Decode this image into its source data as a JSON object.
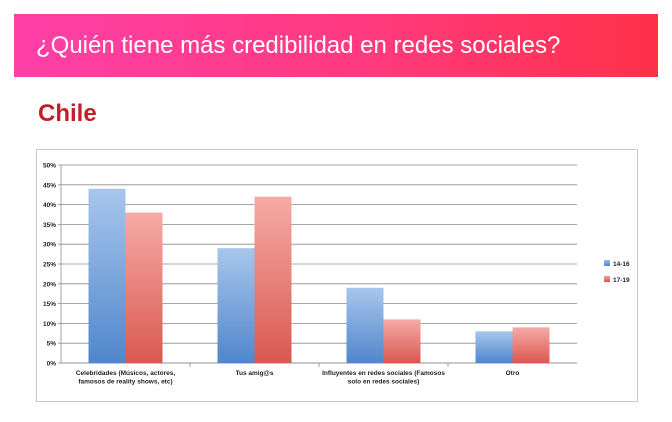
{
  "header": {
    "title": "¿Quién tiene más credibilidad en redes sociales?",
    "country": "Chile"
  },
  "colors": {
    "banner_start": "#ff3fa8",
    "banner_end": "#ff3049",
    "country_text": "#c0202a",
    "series_14_16": "#6f9fd8",
    "series_17_19": "#e8706a"
  },
  "chart_data": {
    "type": "bar",
    "categories": [
      [
        "Celebridades (Músicos, actores,",
        "famosos de reality shows, etc)"
      ],
      [
        "Tus amig@s"
      ],
      [
        "Influyentes en redes sociales (Famosos",
        "solo en redes sociales)"
      ],
      [
        "Otro"
      ]
    ],
    "series": [
      {
        "name": "14-16",
        "values": [
          44,
          29,
          19,
          8
        ]
      },
      {
        "name": "17-19",
        "values": [
          38,
          42,
          11,
          9
        ]
      }
    ],
    "ylim": [
      0,
      50
    ],
    "yticks": [
      "0%",
      "5%",
      "10%",
      "15%",
      "20%",
      "25%",
      "30%",
      "35%",
      "40%",
      "45%",
      "50%"
    ],
    "grid": true,
    "legend": "right"
  }
}
